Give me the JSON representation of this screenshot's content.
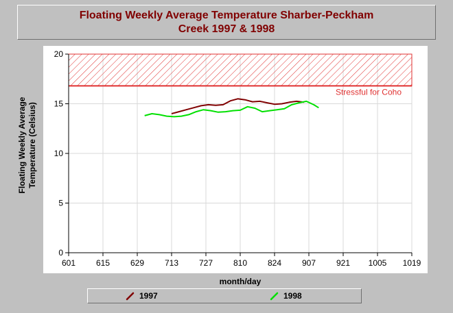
{
  "header": {
    "title_line1": "Floating Weekly Average Temperature Sharber-Peckham",
    "title_line2": "Creek 1997 & 1998"
  },
  "chart_data": {
    "type": "line",
    "title": "Floating Weekly Average Temperature Sharber-Peckham Creek 1997 & 1998",
    "xlabel": "month/day",
    "ylabel_line1": "Floating Weekly Average",
    "ylabel_line2": "Temperature (Celsius)",
    "x_ticks": [
      "601",
      "615",
      "629",
      "713",
      "727",
      "810",
      "824",
      "907",
      "921",
      "1005",
      "1019"
    ],
    "x_range_days": [
      "06/01",
      "10/19"
    ],
    "ylim": [
      0,
      20
    ],
    "y_ticks": [
      "0",
      "5",
      "10",
      "15",
      "20"
    ],
    "grid": true,
    "threshold": {
      "label": "Stressful for Coho",
      "from": 16.8,
      "to": 20,
      "color": "#e03030"
    },
    "series": [
      {
        "name": "1997",
        "color": "#800000",
        "points": [
          [
            "07/13",
            14.0
          ],
          [
            "07/16",
            14.2
          ],
          [
            "07/19",
            14.4
          ],
          [
            "07/22",
            14.6
          ],
          [
            "07/25",
            14.8
          ],
          [
            "07/28",
            14.9
          ],
          [
            "07/31",
            14.85
          ],
          [
            "08/03",
            14.9
          ],
          [
            "08/06",
            15.3
          ],
          [
            "08/09",
            15.5
          ],
          [
            "08/12",
            15.4
          ],
          [
            "08/15",
            15.2
          ],
          [
            "08/18",
            15.25
          ],
          [
            "08/21",
            15.1
          ],
          [
            "08/24",
            14.95
          ],
          [
            "08/27",
            15.0
          ],
          [
            "08/30",
            15.15
          ],
          [
            "09/02",
            15.25
          ],
          [
            "09/05",
            15.15
          ]
        ]
      },
      {
        "name": "1998",
        "color": "#00e000",
        "points": [
          [
            "07/02",
            13.8
          ],
          [
            "07/05",
            14.0
          ],
          [
            "07/08",
            13.9
          ],
          [
            "07/11",
            13.75
          ],
          [
            "07/14",
            13.7
          ],
          [
            "07/17",
            13.75
          ],
          [
            "07/20",
            13.9
          ],
          [
            "07/23",
            14.2
          ],
          [
            "07/26",
            14.4
          ],
          [
            "07/29",
            14.3
          ],
          [
            "08/01",
            14.15
          ],
          [
            "08/04",
            14.2
          ],
          [
            "08/07",
            14.3
          ],
          [
            "08/10",
            14.35
          ],
          [
            "08/13",
            14.7
          ],
          [
            "08/16",
            14.55
          ],
          [
            "08/19",
            14.2
          ],
          [
            "08/22",
            14.3
          ],
          [
            "08/25",
            14.4
          ],
          [
            "08/28",
            14.5
          ],
          [
            "08/31",
            14.9
          ],
          [
            "09/03",
            15.1
          ],
          [
            "09/06",
            15.25
          ],
          [
            "09/09",
            14.9
          ],
          [
            "09/11",
            14.6
          ]
        ]
      }
    ],
    "legend": {
      "position": "bottom"
    }
  }
}
